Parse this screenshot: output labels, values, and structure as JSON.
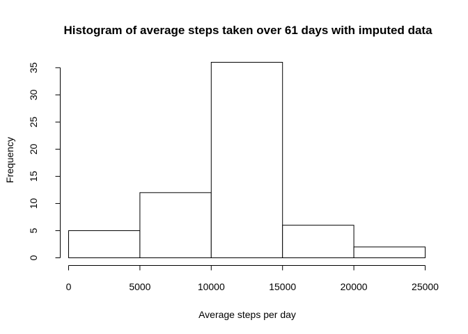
{
  "chart_data": {
    "type": "bar",
    "title": "Histogram of average steps taken over 61 days with imputed data",
    "xlabel": "Average steps per day",
    "ylabel": "Frequency",
    "bins": [
      {
        "from": 0,
        "to": 5000,
        "count": 5
      },
      {
        "from": 5000,
        "to": 10000,
        "count": 12
      },
      {
        "from": 10000,
        "to": 15000,
        "count": 36
      },
      {
        "from": 15000,
        "to": 20000,
        "count": 6
      },
      {
        "from": 20000,
        "to": 25000,
        "count": 2
      }
    ],
    "xticks": [
      "0",
      "5000",
      "10000",
      "15000",
      "20000",
      "25000"
    ],
    "yticks": [
      "0",
      "5",
      "10",
      "15",
      "20",
      "25",
      "30",
      "35"
    ],
    "xlim": [
      0,
      25000
    ],
    "ylim": [
      0,
      36
    ],
    "grid": false,
    "bar_fill": "#ffffff",
    "bar_stroke": "#000000"
  }
}
